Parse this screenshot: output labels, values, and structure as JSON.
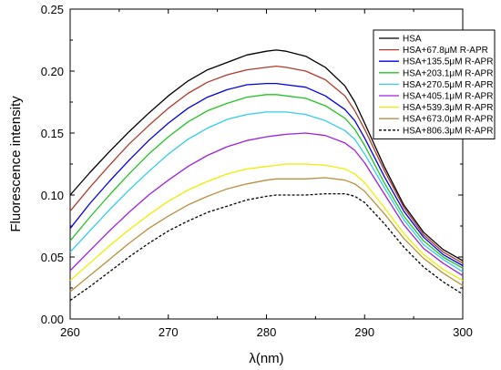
{
  "chart_data": {
    "type": "line",
    "xlabel": "λ(nm)",
    "ylabel": "Fluorescence intensity",
    "xlim": [
      260,
      300
    ],
    "ylim": [
      0.0,
      0.25
    ],
    "xticks": [
      260,
      270,
      280,
      290,
      300
    ],
    "yticks": [
      0.0,
      0.05,
      0.1,
      0.15,
      0.2,
      0.25
    ],
    "xtick_labels": [
      "260",
      "270",
      "280",
      "290",
      "300"
    ],
    "ytick_labels": [
      "0.00",
      "0.05",
      "0.10",
      "0.15",
      "0.20",
      "0.25"
    ],
    "grid": false,
    "legend_position": "top-right",
    "x": [
      260,
      262,
      264,
      266,
      268,
      270,
      272,
      274,
      276,
      278,
      280,
      281,
      282,
      284,
      286,
      288,
      289,
      290,
      292,
      294,
      296,
      298,
      300
    ],
    "series": [
      {
        "name": "HSA",
        "color": "#000000",
        "dash": "solid",
        "values": [
          0.1,
          0.118,
          0.135,
          0.151,
          0.166,
          0.18,
          0.192,
          0.201,
          0.207,
          0.213,
          0.216,
          0.217,
          0.216,
          0.212,
          0.203,
          0.188,
          0.175,
          0.158,
          0.123,
          0.092,
          0.07,
          0.056,
          0.047
        ]
      },
      {
        "name": "HSA+67.8μM R-APR",
        "color": "#b03a2e",
        "dash": "solid",
        "values": [
          0.087,
          0.106,
          0.124,
          0.141,
          0.156,
          0.17,
          0.182,
          0.191,
          0.197,
          0.201,
          0.203,
          0.204,
          0.203,
          0.2,
          0.193,
          0.18,
          0.168,
          0.153,
          0.12,
          0.09,
          0.068,
          0.054,
          0.045
        ]
      },
      {
        "name": "HSA+135.5μM R-APR",
        "color": "#0000e0",
        "dash": "solid",
        "values": [
          0.073,
          0.093,
          0.111,
          0.128,
          0.144,
          0.158,
          0.17,
          0.179,
          0.185,
          0.189,
          0.19,
          0.19,
          0.189,
          0.187,
          0.18,
          0.169,
          0.16,
          0.146,
          0.115,
          0.087,
          0.066,
          0.052,
          0.043
        ]
      },
      {
        "name": "HSA+203.1μM R-APR",
        "color": "#22c322",
        "dash": "solid",
        "values": [
          0.063,
          0.082,
          0.1,
          0.117,
          0.133,
          0.147,
          0.159,
          0.168,
          0.174,
          0.179,
          0.181,
          0.181,
          0.18,
          0.178,
          0.172,
          0.162,
          0.153,
          0.14,
          0.11,
          0.083,
          0.063,
          0.05,
          0.041
        ]
      },
      {
        "name": "HSA+270.5μM R-APR",
        "color": "#33ccee",
        "dash": "solid",
        "values": [
          0.054,
          0.071,
          0.088,
          0.104,
          0.119,
          0.133,
          0.145,
          0.154,
          0.161,
          0.165,
          0.167,
          0.167,
          0.167,
          0.165,
          0.16,
          0.152,
          0.145,
          0.133,
          0.106,
          0.08,
          0.06,
          0.048,
          0.038
        ]
      },
      {
        "name": "HSA+405.1μM R-APR",
        "color": "#a020e0",
        "dash": "solid",
        "values": [
          0.039,
          0.055,
          0.071,
          0.086,
          0.1,
          0.112,
          0.123,
          0.132,
          0.139,
          0.144,
          0.147,
          0.148,
          0.149,
          0.15,
          0.148,
          0.142,
          0.136,
          0.126,
          0.101,
          0.076,
          0.057,
          0.045,
          0.035
        ]
      },
      {
        "name": "HSA+539.3μM R-APR",
        "color": "#eeee00",
        "dash": "solid",
        "values": [
          0.031,
          0.045,
          0.059,
          0.072,
          0.084,
          0.095,
          0.104,
          0.111,
          0.117,
          0.121,
          0.123,
          0.124,
          0.125,
          0.125,
          0.124,
          0.121,
          0.117,
          0.11,
          0.09,
          0.069,
          0.052,
          0.04,
          0.031
        ]
      },
      {
        "name": "HSA+673.0μM R-APR",
        "color": "#b8903e",
        "dash": "solid",
        "values": [
          0.022,
          0.035,
          0.048,
          0.061,
          0.073,
          0.083,
          0.092,
          0.099,
          0.105,
          0.109,
          0.112,
          0.113,
          0.113,
          0.113,
          0.114,
          0.112,
          0.109,
          0.103,
          0.085,
          0.065,
          0.049,
          0.037,
          0.027
        ]
      },
      {
        "name": "HSA+806.3μM R-APR",
        "color": "#000000",
        "dash": "dashed",
        "values": [
          0.015,
          0.026,
          0.038,
          0.05,
          0.061,
          0.071,
          0.079,
          0.086,
          0.091,
          0.096,
          0.099,
          0.1,
          0.1,
          0.1,
          0.101,
          0.101,
          0.099,
          0.094,
          0.077,
          0.058,
          0.042,
          0.03,
          0.02
        ]
      }
    ]
  }
}
